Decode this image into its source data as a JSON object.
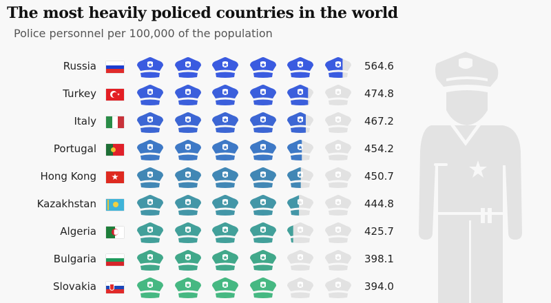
{
  "title": "The most heavily policed countries in the world",
  "subtitle": "Police personnel per 100,000 of the population",
  "chart_data": {
    "type": "pictogram",
    "title": "The most heavily policed countries in the world",
    "subtitle": "Police personnel per 100,000 of the population",
    "unit_per_icon": 100,
    "icon": "police-cap-icon",
    "empty_color": "#e2e2e2",
    "rows": [
      {
        "country": "Russia",
        "value": 564.6,
        "value_label": "564.6",
        "color": "#3a5be0",
        "flag": "russia"
      },
      {
        "country": "Turkey",
        "value": 474.8,
        "value_label": "474.8",
        "color": "#3b5fdc",
        "flag": "turkey"
      },
      {
        "country": "Italy",
        "value": 467.2,
        "value_label": "467.2",
        "color": "#3c66d4",
        "flag": "italy"
      },
      {
        "country": "Portugal",
        "value": 454.2,
        "value_label": "454.2",
        "color": "#3e79c6",
        "flag": "portugal"
      },
      {
        "country": "Hong Kong",
        "value": 450.7,
        "value_label": "450.7",
        "color": "#4187b5",
        "flag": "hong-kong"
      },
      {
        "country": "Kazakhstan",
        "value": 444.8,
        "value_label": "444.8",
        "color": "#4396a7",
        "flag": "kazakhstan"
      },
      {
        "country": "Algeria",
        "value": 425.7,
        "value_label": "425.7",
        "color": "#42a09a",
        "flag": "algeria"
      },
      {
        "country": "Bulgaria",
        "value": 398.1,
        "value_label": "398.1",
        "color": "#41a88a",
        "flag": "bulgaria"
      },
      {
        "country": "Slovakia",
        "value": 394.0,
        "value_label": "394.0",
        "color": "#46b882",
        "flag": "slovakia"
      }
    ]
  }
}
